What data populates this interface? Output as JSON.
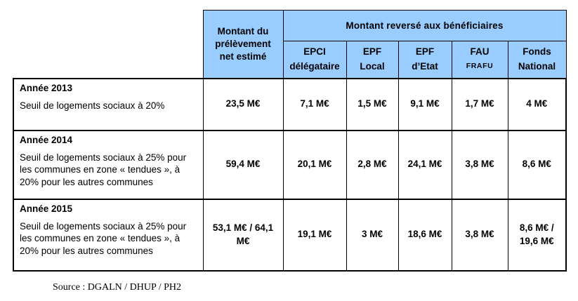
{
  "colors": {
    "header_bg": "#99CCFF",
    "border": "#000000",
    "page_bg": "#ffffff"
  },
  "table": {
    "header": {
      "prelevement": "Montant du prélèvement net estimé",
      "group": "Montant reversé aux bénéficiaires",
      "sub": [
        {
          "line1": "EPCI",
          "line2": "délégataire"
        },
        {
          "line1": "EPF",
          "line2": "Local"
        },
        {
          "line1": "EPF",
          "line2": "d’Etat"
        },
        {
          "line1": "FAU",
          "line2": "FRAFU"
        },
        {
          "line1": "Fonds",
          "line2": "National"
        }
      ]
    },
    "rows": [
      {
        "year": "Année 2013",
        "description": "Seuil de logements sociaux à 20%",
        "values": [
          "23,5 M€",
          "7,1 M€",
          "1,5 M€",
          "9,1 M€",
          "1,7 M€",
          "4 M€"
        ]
      },
      {
        "year": "Année 2014",
        "description": "Seuil de logements sociaux à 25% pour les communes en zone « tendues », à 20% pour les autres communes",
        "values": [
          "59,4 M€",
          "20,1 M€",
          "2,8 M€",
          "24,1 M€",
          "3,8 M€",
          "8,6 M€"
        ]
      },
      {
        "year": "Année 2015",
        "description": "Seuil de logements sociaux à 25% pour les communes en zone « tendues », à 20% pour les autres communes",
        "values": [
          "53,1 M€ / 64,1 M€",
          "19,1 M€",
          "3 M€",
          "18,6 M€",
          "3,8 M€",
          "8,6 M€ / 19,6 M€"
        ]
      }
    ]
  },
  "source": "Source : DGALN / DHUP / PH2"
}
